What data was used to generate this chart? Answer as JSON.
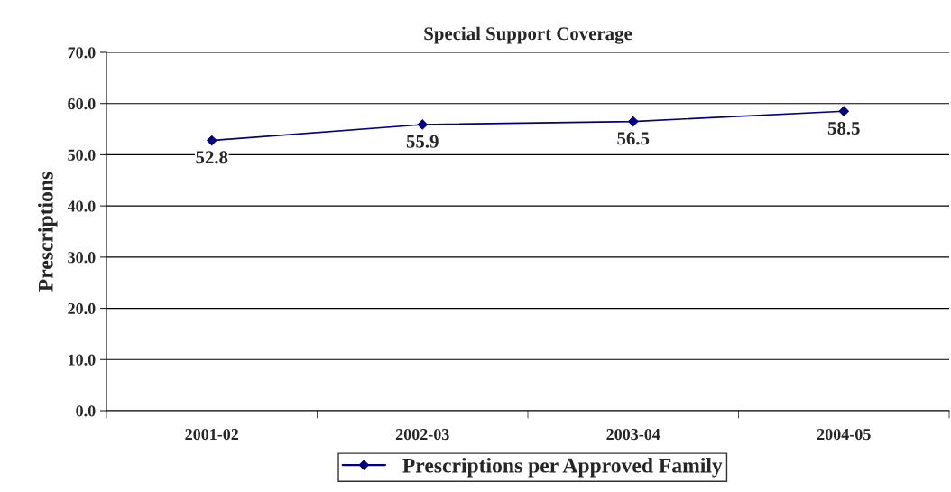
{
  "chart_data": {
    "type": "line",
    "title": "Special Support Coverage",
    "ylabel": "Prescriptions",
    "categories": [
      "2001-02",
      "2002-03",
      "2003-04",
      "2004-05"
    ],
    "series": [
      {
        "name": "Prescriptions per Approved Family",
        "color": "#000080",
        "values": [
          52.8,
          55.9,
          56.5,
          58.5
        ]
      }
    ],
    "ylim": [
      0,
      70
    ],
    "yticks": [
      {
        "value": 0,
        "label": "0.0"
      },
      {
        "value": 10,
        "label": "10.0"
      },
      {
        "value": 20,
        "label": "20.0"
      },
      {
        "value": 30,
        "label": "30.0"
      },
      {
        "value": 40,
        "label": "40.0"
      },
      {
        "value": 50,
        "label": "50.0"
      },
      {
        "value": 60,
        "label": "60.0"
      },
      {
        "value": 70,
        "label": "70.0"
      }
    ],
    "grid": "y",
    "legend": "bottom",
    "marker": "diamond",
    "line_style": "solid",
    "data_labels": true
  }
}
